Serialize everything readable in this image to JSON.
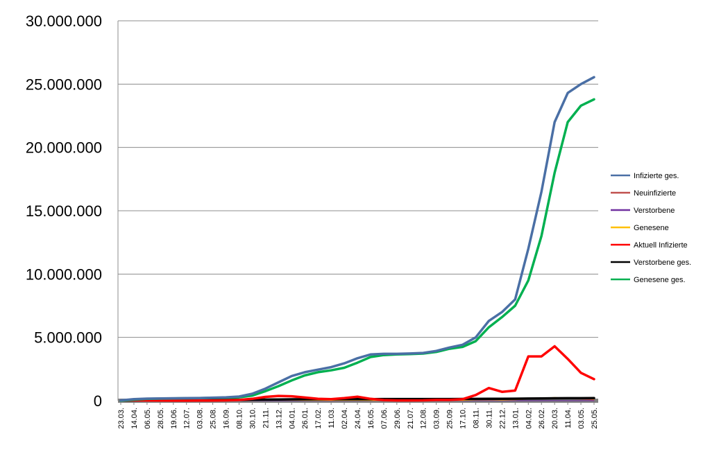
{
  "chart_data": {
    "type": "line",
    "title": "",
    "xlabel": "",
    "ylabel": "",
    "ylim": [
      0,
      30000000
    ],
    "yticks": [
      {
        "value": 0,
        "label": "0"
      },
      {
        "value": 5000000,
        "label": "5.000.000"
      },
      {
        "value": 10000000,
        "label": "10.000.000"
      },
      {
        "value": 15000000,
        "label": "15.000.000"
      },
      {
        "value": 20000000,
        "label": "20.000.000"
      },
      {
        "value": 25000000,
        "label": "25.000.000"
      },
      {
        "value": 30000000,
        "label": "30.000.000"
      }
    ],
    "grid": "horizontal",
    "legend_position": "right",
    "x_categories": [
      "23.03.",
      "14.04.",
      "06.05.",
      "28.05.",
      "19.06.",
      "12.07.",
      "03.08.",
      "25.08.",
      "16.09.",
      "08.10.",
      "30.10.",
      "21.11.",
      "13.12.",
      "04.01.",
      "26.01.",
      "17.02.",
      "11.03.",
      "02.04.",
      "24.04.",
      "16.05.",
      "07.06.",
      "29.06.",
      "21.07.",
      "12.08.",
      "03.09.",
      "25.09.",
      "17.10.",
      "08.11.",
      "30.11.",
      "22.12.",
      "13.01.",
      "04.02.",
      "26.02.",
      "20.03.",
      "11.04.",
      "03.05.",
      "25.05."
    ],
    "series": [
      {
        "name": "Infizierte ges.",
        "color": "#4a6fa5",
        "width": 3.5,
        "values": [
          30000,
          120000,
          165000,
          180000,
          190000,
          200000,
          215000,
          240000,
          270000,
          330000,
          550000,
          950000,
          1450000,
          1950000,
          2250000,
          2450000,
          2650000,
          2950000,
          3350000,
          3650000,
          3700000,
          3700000,
          3730000,
          3770000,
          3930000,
          4200000,
          4420000,
          5000000,
          6300000,
          7000000,
          8000000,
          12000000,
          16500000,
          22000000,
          24300000,
          25000000,
          25550000
        ]
      },
      {
        "name": "Neuinfizierte",
        "color": "#c0504d",
        "width": 1.2,
        "values": [
          5000,
          3000,
          2000,
          2000,
          2000,
          3000,
          5000,
          8000,
          12000,
          20000,
          40000,
          50000,
          40000,
          35000,
          25000,
          20000,
          25000,
          30000,
          30000,
          15000,
          8000,
          5000,
          8000,
          10000,
          15000,
          20000,
          40000,
          70000,
          60000,
          40000,
          80000,
          120000,
          150000,
          200000,
          150000,
          120000,
          60000
        ]
      },
      {
        "name": "Verstorbene",
        "color": "#7030a0",
        "width": 1.2,
        "values": [
          500,
          600,
          400,
          200,
          100,
          100,
          100,
          200,
          300,
          500,
          1000,
          1500,
          2000,
          2000,
          1500,
          1000,
          800,
          800,
          700,
          500,
          200,
          100,
          100,
          100,
          200,
          300,
          500,
          1200,
          1800,
          1500,
          1500,
          2000,
          2500,
          3000,
          2500,
          2000,
          1000
        ]
      },
      {
        "name": "Genesene",
        "color": "#ffc000",
        "width": 1.2,
        "values": [
          2000,
          5000,
          4000,
          3000,
          2000,
          2000,
          3000,
          5000,
          8000,
          12000,
          25000,
          40000,
          45000,
          40000,
          30000,
          25000,
          25000,
          28000,
          30000,
          20000,
          10000,
          6000,
          8000,
          10000,
          15000,
          20000,
          30000,
          60000,
          70000,
          50000,
          70000,
          150000,
          200000,
          250000,
          200000,
          180000,
          120000
        ]
      },
      {
        "name": "Aktuell Infizierte",
        "color": "#ff0000",
        "width": 3.5,
        "values": [
          20000,
          40000,
          20000,
          10000,
          8000,
          8000,
          10000,
          15000,
          30000,
          60000,
          150000,
          300000,
          380000,
          350000,
          250000,
          150000,
          120000,
          200000,
          320000,
          150000,
          50000,
          20000,
          20000,
          30000,
          60000,
          60000,
          120000,
          450000,
          1000000,
          700000,
          800000,
          3500000,
          3500000,
          4300000,
          3300000,
          2200000,
          1700000
        ]
      },
      {
        "name": "Verstorbene ges.",
        "color": "#000000",
        "width": 3.5,
        "values": [
          10000,
          30000,
          40000,
          45000,
          48000,
          50000,
          52000,
          55000,
          60000,
          70000,
          80000,
          90000,
          100000,
          110000,
          115000,
          120000,
          122000,
          124000,
          126000,
          128000,
          129000,
          130000,
          130000,
          131000,
          132000,
          133000,
          135000,
          140000,
          148000,
          155000,
          160000,
          170000,
          180000,
          190000,
          195000,
          198000,
          200000
        ]
      },
      {
        "name": "Genesene ges.",
        "color": "#00b050",
        "width": 3.5,
        "values": [
          5000,
          80000,
          140000,
          165000,
          180000,
          190000,
          205000,
          225000,
          240000,
          270000,
          400000,
          750000,
          1150000,
          1600000,
          2000000,
          2250000,
          2400000,
          2600000,
          3000000,
          3450000,
          3600000,
          3650000,
          3680000,
          3720000,
          3850000,
          4100000,
          4250000,
          4700000,
          5800000,
          6600000,
          7500000,
          9500000,
          13000000,
          18000000,
          22000000,
          23300000,
          23800000
        ]
      }
    ]
  }
}
